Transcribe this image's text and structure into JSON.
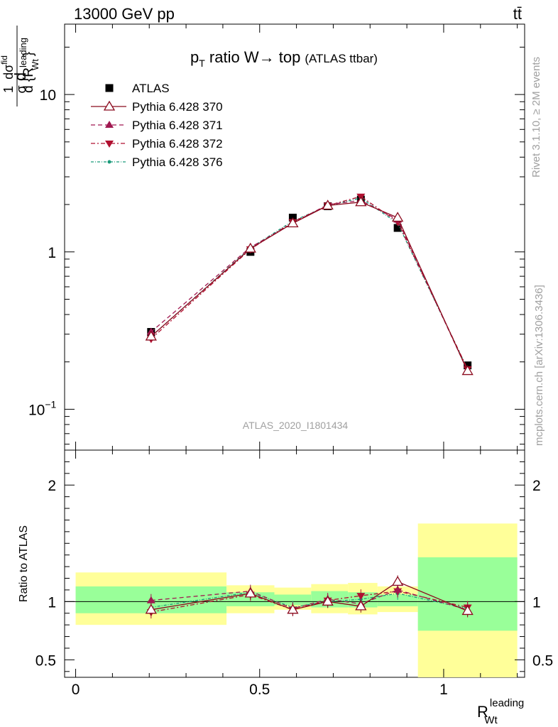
{
  "header": {
    "left": "13000 GeV pp",
    "right": "tt̄"
  },
  "side_labels": {
    "rivet": "Rivet 3.1.10, ≥ 2M events",
    "mcplots": "mcplots.cern.ch [arXiv:1306.3436]"
  },
  "chart_data": {
    "type": "line",
    "analysis_id": "ATLAS_2020_I1801434",
    "title": {
      "main_prefix": "p",
      "main_sub": "T",
      "main_rest": " ratio W",
      "arrow": "→",
      "main_end": " top",
      "small": "(ATLAS ttbar)"
    },
    "ylabel": {
      "d": "d",
      "one": "1",
      "sigma": "σ",
      "num": "dσ",
      "num_sup": "fid",
      "den_prefix": "d {R",
      "den_sup": "leading",
      "den_sub": "Wt",
      "den_close": "}"
    },
    "xlabel": {
      "main": "R",
      "sup": "leading",
      "sub": "Wt"
    },
    "ratio_ylabel": "Ratio to ATLAS",
    "xlim": [
      -0.03,
      1.22
    ],
    "ylim_main": [
      0.055,
      28
    ],
    "ylim_ratio": [
      0.35,
      2.3
    ],
    "yscale_main": "log",
    "x_ticks": [
      {
        "value": 0,
        "label": "0"
      },
      {
        "value": 0.5,
        "label": "0.5"
      },
      {
        "value": 1,
        "label": "1"
      }
    ],
    "main_y_ticks": [
      {
        "value": 0.1,
        "base": "10",
        "exp": "−1"
      },
      {
        "value": 1,
        "base": "1",
        "exp": ""
      },
      {
        "value": 10,
        "base": "10",
        "exp": ""
      }
    ],
    "ratio_y_ticks": [
      {
        "value": 0.5,
        "label": "0.5"
      },
      {
        "value": 1,
        "label": "1"
      },
      {
        "value": 2,
        "label": "2"
      }
    ],
    "legend_position": "top-left",
    "bins": [
      {
        "lo": 0.0,
        "hi": 0.41,
        "x": 0.205
      },
      {
        "lo": 0.41,
        "hi": 0.54,
        "x": 0.475
      },
      {
        "lo": 0.54,
        "hi": 0.64,
        "x": 0.59
      },
      {
        "lo": 0.64,
        "hi": 0.74,
        "x": 0.685
      },
      {
        "lo": 0.74,
        "hi": 0.82,
        "x": 0.775
      },
      {
        "lo": 0.82,
        "hi": 0.93,
        "x": 0.875
      },
      {
        "lo": 0.93,
        "hi": 1.2,
        "x": 1.065
      }
    ],
    "data": {
      "name": "ATLAS",
      "values": [
        0.31,
        1.0,
        1.65,
        1.95,
        2.15,
        1.42,
        0.19
      ],
      "band_inner": [
        [
          0.9,
          1.13
        ],
        [
          0.96,
          1.08
        ],
        [
          0.97,
          1.06
        ],
        [
          0.95,
          1.09
        ],
        [
          0.95,
          1.08
        ],
        [
          0.96,
          1.06
        ],
        [
          0.75,
          1.38
        ]
      ],
      "band_outer": [
        [
          0.8,
          1.25
        ],
        [
          0.9,
          1.14
        ],
        [
          0.93,
          1.12
        ],
        [
          0.9,
          1.15
        ],
        [
          0.89,
          1.16
        ],
        [
          0.91,
          1.13
        ],
        [
          0.35,
          1.67
        ]
      ]
    },
    "series": [
      {
        "name": "Pythia 6.428 370",
        "color": "#8b0a1e",
        "dash": "solid",
        "marker": "open-triangle-up",
        "values": [
          0.29,
          1.05,
          1.52,
          1.97,
          2.07,
          1.65,
          0.175
        ],
        "ratio": [
          0.93,
          1.07,
          0.93,
          1.0,
          0.96,
          1.17,
          0.92
        ]
      },
      {
        "name": "Pythia 6.428 371",
        "color": "#a01850",
        "dash": "6,4",
        "marker": "triangle-up",
        "values": [
          0.31,
          1.07,
          1.52,
          2.0,
          2.12,
          1.6,
          0.175
        ],
        "ratio": [
          1.01,
          1.09,
          0.94,
          1.02,
          0.98,
          1.1,
          0.93
        ]
      },
      {
        "name": "Pythia 6.428 372",
        "color": "#b01030",
        "dash": "6,3,2,3",
        "marker": "triangle-down",
        "values": [
          0.28,
          1.04,
          1.55,
          1.97,
          2.25,
          1.55,
          0.18
        ],
        "ratio": [
          0.91,
          1.06,
          0.93,
          1.01,
          1.05,
          1.09,
          0.95
        ]
      },
      {
        "name": "Pythia 6.428 376",
        "color": "#1a9a7a",
        "dash": "4,2,1,2",
        "marker": "dot",
        "values": [
          0.29,
          1.06,
          1.57,
          1.96,
          2.2,
          1.52,
          0.18
        ],
        "ratio": [
          0.95,
          1.08,
          0.95,
          1.0,
          1.02,
          1.07,
          0.94
        ]
      }
    ]
  }
}
